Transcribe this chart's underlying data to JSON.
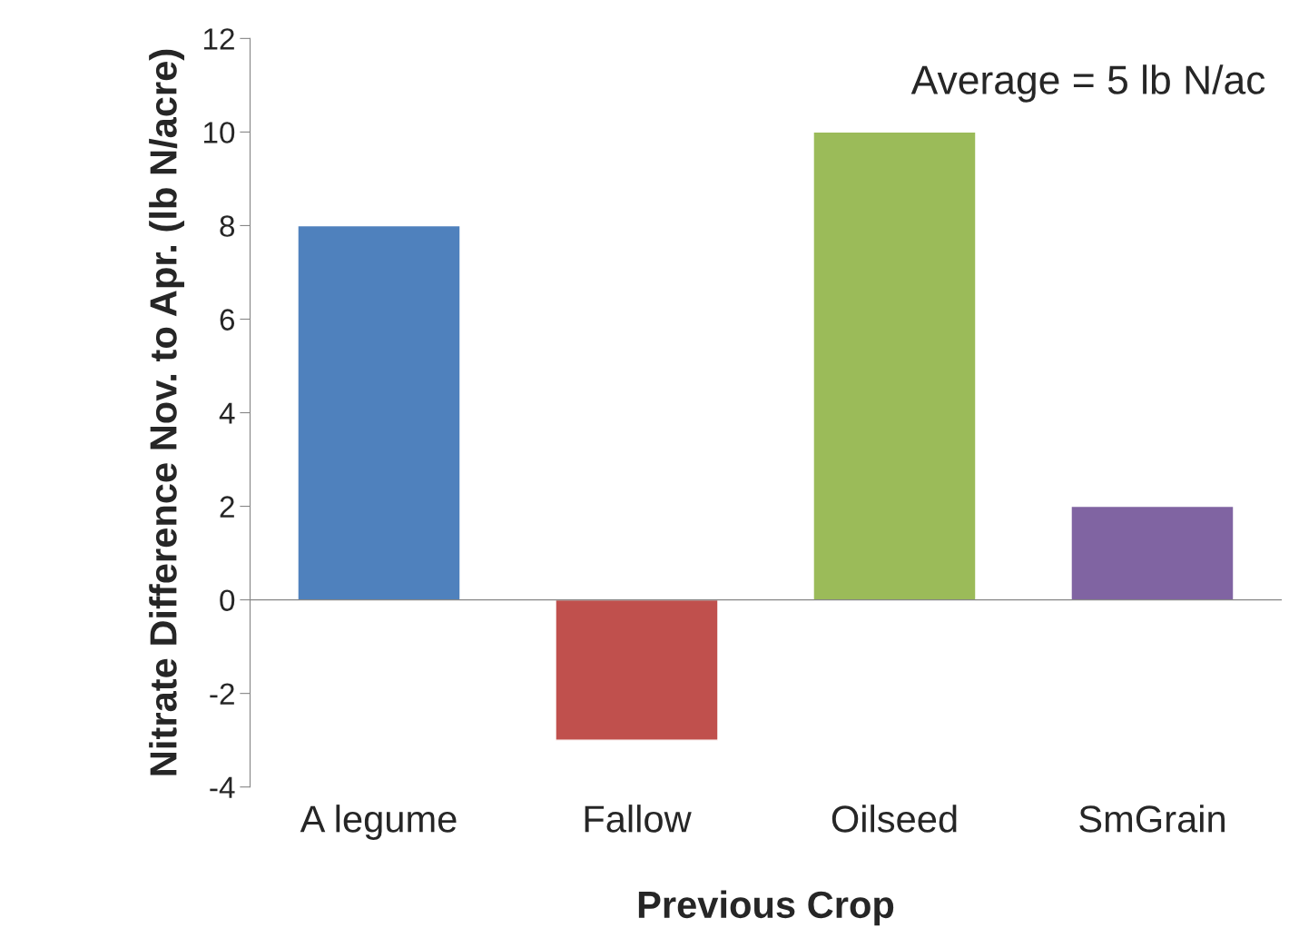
{
  "chart_data": {
    "type": "bar",
    "xlabel": "Previous Crop",
    "ylabel": "Nitrate Difference Nov. to Apr. (lb N/acre)",
    "categories": [
      "A legume",
      "Fallow",
      "Oilseed",
      "SmGrain"
    ],
    "values": [
      8,
      -3,
      10,
      2
    ],
    "colors": [
      "#4f81bd",
      "#c0504d",
      "#9bbb59",
      "#8064a2"
    ],
    "ylim": [
      -4,
      12
    ],
    "yticks": [
      -4,
      -2,
      0,
      2,
      4,
      6,
      8,
      10,
      12
    ],
    "legend": false,
    "annotations": [
      "Average = 5 lb N/ac"
    ]
  }
}
